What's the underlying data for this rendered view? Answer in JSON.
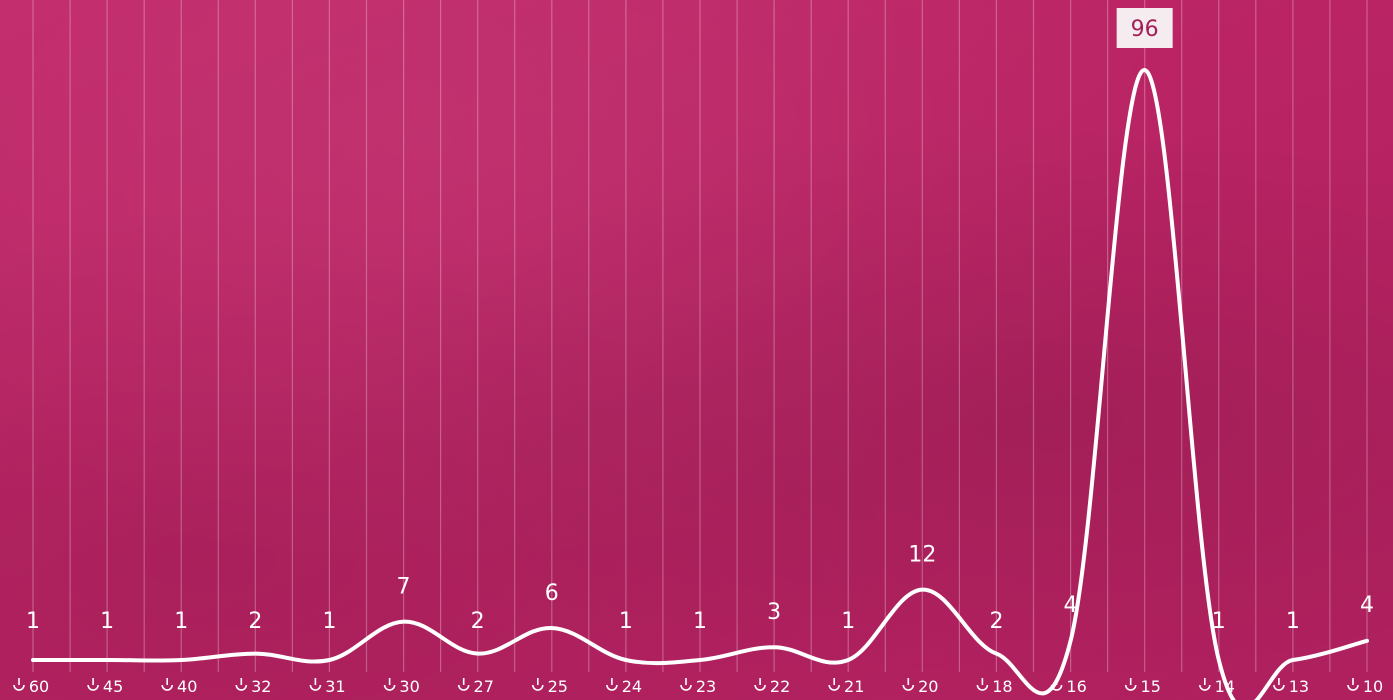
{
  "chart_data": {
    "type": "line",
    "categories": [
      "60",
      "45",
      "40",
      "32",
      "31",
      "30",
      "27",
      "25",
      "24",
      "23",
      "22",
      "21",
      "20",
      "18",
      "16",
      "15",
      "14",
      "13",
      "10"
    ],
    "values": [
      1,
      1,
      1,
      2,
      1,
      7,
      2,
      6,
      1,
      1,
      3,
      1,
      12,
      2,
      4,
      96,
      1,
      1,
      4
    ],
    "tick_icon": "tilted-arrow-icon",
    "highlighted_value": 96,
    "grid": true,
    "colors": {
      "background": "#bb2566",
      "line": "#ffffff",
      "highlight_box": "#f4ecef"
    }
  }
}
